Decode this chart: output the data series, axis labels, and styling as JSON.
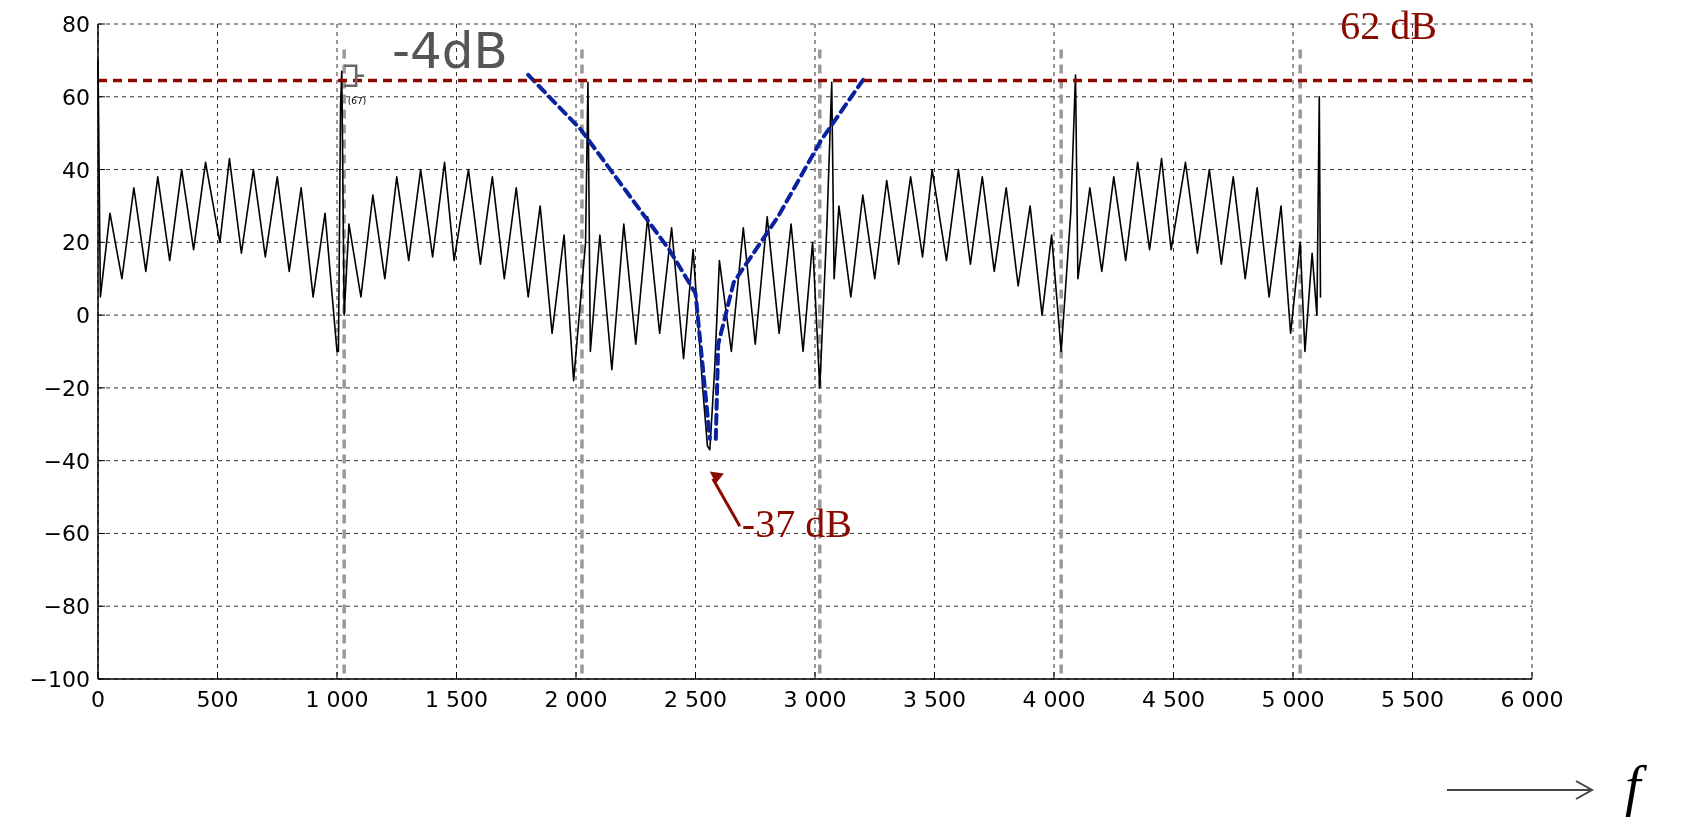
{
  "chart_data": {
    "type": "line",
    "xlabel": "f",
    "xlim": [
      0,
      6000
    ],
    "xticks": [
      0,
      {
        "value": 500,
        "label": "500"
      },
      {
        "value": 1000,
        "label": "1 000"
      },
      {
        "value": 1500,
        "label": "1 500"
      },
      {
        "value": 2000,
        "label": "2 000"
      },
      {
        "value": 2500,
        "label": "2 500"
      },
      {
        "value": 3000,
        "label": "3 000"
      },
      {
        "value": 3500,
        "label": "3 500"
      },
      {
        "value": 4000,
        "label": "4 000"
      },
      {
        "value": 4500,
        "label": "4 500"
      },
      {
        "value": 5000,
        "label": "5 000"
      },
      {
        "value": 5500,
        "label": "5 500"
      },
      {
        "value": 6000,
        "label": "6 000"
      }
    ],
    "ylim": [
      -100,
      80
    ],
    "yticks": [
      {
        "value": -100,
        "label": "−100"
      },
      {
        "value": -80,
        "label": "−80"
      },
      {
        "value": -60,
        "label": "−60"
      },
      {
        "value": -40,
        "label": "−40"
      },
      {
        "value": -20,
        "label": "−20"
      },
      0,
      20,
      40,
      60,
      80
    ],
    "grid": true,
    "line_style": "solid",
    "marker": "none",
    "series": [
      {
        "color": "#000000",
        "x": [
          0,
          10,
          50,
          100,
          150,
          200,
          250,
          300,
          350,
          400,
          450,
          510,
          550,
          600,
          650,
          700,
          750,
          800,
          850,
          900,
          950,
          1000,
          1006,
          1015,
          1020,
          1030,
          1050,
          1100,
          1150,
          1200,
          1250,
          1300,
          1350,
          1400,
          1450,
          1490,
          1550,
          1600,
          1650,
          1700,
          1750,
          1800,
          1850,
          1900,
          1950,
          1990,
          2040,
          2050,
          2060,
          2100,
          2150,
          2200,
          2250,
          2300,
          2350,
          2400,
          2450,
          2490,
          2530,
          2550,
          2560,
          2580,
          2600,
          2650,
          2700,
          2750,
          2800,
          2850,
          2900,
          2950,
          2990,
          3020,
          3050,
          3070,
          3080,
          3100,
          3150,
          3200,
          3250,
          3300,
          3350,
          3400,
          3450,
          3490,
          3550,
          3600,
          3650,
          3700,
          3750,
          3800,
          3850,
          3900,
          3950,
          3990,
          4030,
          4070,
          4090,
          4100,
          4150,
          4200,
          4250,
          4300,
          4350,
          4400,
          4450,
          4490,
          4550,
          4600,
          4650,
          4700,
          4750,
          4800,
          4850,
          4900,
          4950,
          4990,
          5030,
          5050,
          5080,
          5100,
          5110,
          5115
        ],
        "values": [
          70,
          5,
          28,
          10,
          35,
          12,
          38,
          15,
          40,
          18,
          42,
          20,
          43,
          17,
          40,
          16,
          38,
          12,
          35,
          5,
          28,
          -10,
          -10,
          58,
          67,
          0,
          25,
          5,
          33,
          10,
          38,
          15,
          40,
          16,
          42,
          15,
          40,
          14,
          38,
          10,
          35,
          5,
          30,
          -5,
          22,
          -18,
          20,
          64,
          -10,
          22,
          -15,
          25,
          -8,
          27,
          -5,
          24,
          -12,
          18,
          -20,
          -36,
          -37,
          -15,
          15,
          -10,
          24,
          -8,
          27,
          -5,
          25,
          -10,
          20,
          -20,
          25,
          64,
          10,
          30,
          5,
          33,
          10,
          37,
          14,
          38,
          16,
          40,
          15,
          40,
          14,
          38,
          12,
          35,
          8,
          30,
          0,
          22,
          -10,
          28,
          66,
          10,
          35,
          12,
          38,
          15,
          42,
          18,
          43,
          18,
          42,
          17,
          40,
          14,
          38,
          10,
          35,
          5,
          30,
          -5,
          20,
          -10,
          17,
          0,
          60,
          5
        ]
      },
      {
        "color": "#0a22a0",
        "line_style": "dashed",
        "x": [
          1800,
          2020,
          2390,
          2500,
          2560
        ],
        "values": [
          66,
          51,
          18,
          6,
          -34
        ]
      },
      {
        "color": "#0a22a0",
        "line_style": "dashed",
        "x": [
          2585,
          2595,
          2660,
          2845,
          3025,
          3205
        ],
        "values": [
          -34,
          -8,
          9,
          27,
          48,
          65
        ]
      }
    ],
    "ref_lines": [
      {
        "axis": "y",
        "value": 64.5,
        "color": "#8b0a00",
        "line_style": "dashed"
      },
      {
        "axis": "x",
        "value": 1030,
        "color": "#999999",
        "line_style": "dashed"
      },
      {
        "axis": "x",
        "value": 2025,
        "color": "#999999",
        "line_style": "dashed"
      },
      {
        "axis": "x",
        "value": 3020,
        "color": "#999999",
        "line_style": "dashed"
      },
      {
        "axis": "x",
        "value": 4030,
        "color": "#999999",
        "line_style": "dashed"
      },
      {
        "axis": "x",
        "value": 5030,
        "color": "#999999",
        "line_style": "dashed"
      }
    ],
    "annotations": [
      "62 dB",
      "-4dB",
      {
        "text": "(67)",
        "x": 1020,
        "y": 67
      },
      {
        "text": "-37 dB",
        "x": 2560,
        "y": -37
      }
    ]
  }
}
